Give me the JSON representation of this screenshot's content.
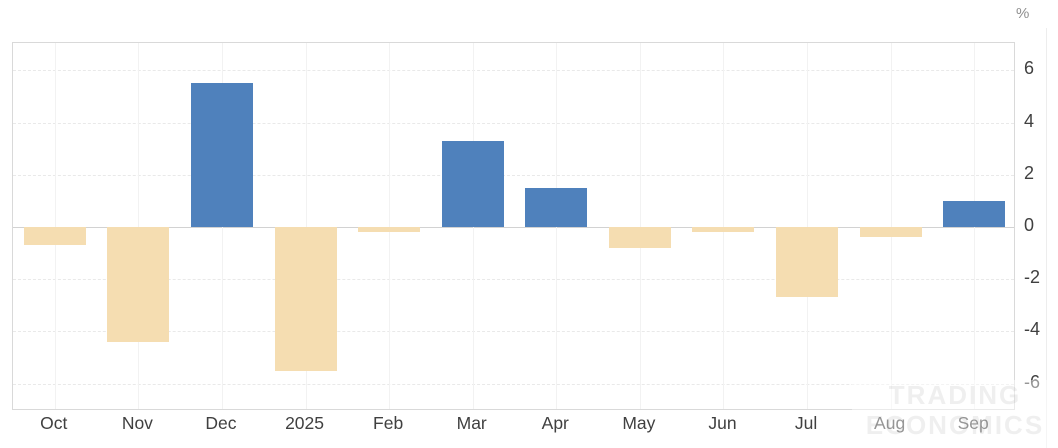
{
  "chart_data": {
    "type": "bar",
    "title": "",
    "xlabel": "",
    "ylabel": "%",
    "categories": [
      "Oct",
      "Nov",
      "Dec",
      "2025",
      "Feb",
      "Mar",
      "Apr",
      "May",
      "Jun",
      "Jul",
      "Aug",
      "Sep"
    ],
    "values": [
      -0.7,
      -4.4,
      5.5,
      -5.5,
      -0.2,
      3.3,
      1.5,
      -0.8,
      -0.2,
      -2.7,
      -0.4,
      1.0
    ],
    "y_ticks": [
      6,
      4,
      2,
      0,
      -2,
      -4,
      -6
    ],
    "y_tick_labels": [
      "6",
      "4",
      "2",
      "0",
      "-2",
      "-4",
      "-6"
    ],
    "ylim": [
      -7.05,
      7.05
    ],
    "grid": true,
    "legend_position": "none",
    "colors": {
      "positive_bar": "#4f81bc",
      "negative_bar": "#f5ddb1",
      "axis_text": "#404040",
      "unit_text": "#8f8f8f",
      "grid_line": "#e9e9e9",
      "zero_line": "#d2d2d2",
      "plot_border": "#d9d9d9"
    }
  },
  "axis": {
    "unit_label": "%"
  },
  "watermark": {
    "line1": "TRADING",
    "line2": "ECONOMICS"
  }
}
